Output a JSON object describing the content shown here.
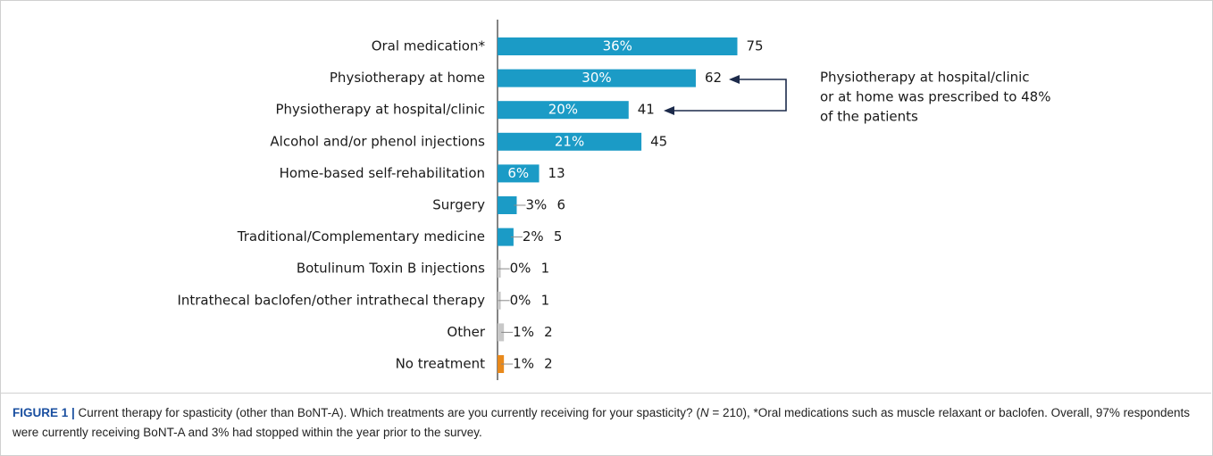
{
  "chart_data": {
    "type": "bar",
    "orientation": "horizontal",
    "categories": [
      "Oral medication*",
      "Physiotherapy at home",
      "Physiotherapy at hospital/clinic",
      "Alcohol and/or phenol injections",
      "Home-based self-rehabilitation",
      "Surgery",
      "Traditional/Complementary medicine",
      "Botulinum Toxin B injections",
      "Intrathecal baclofen/other intrathecal therapy",
      "Other",
      "No treatment"
    ],
    "values": [
      75,
      62,
      41,
      45,
      13,
      6,
      5,
      1,
      1,
      2,
      2
    ],
    "percent_labels": [
      "36%",
      "30%",
      "20%",
      "21%",
      "6%",
      "3%",
      "2%",
      "0%",
      "0%",
      "1%",
      "1%"
    ],
    "colors": [
      "#1b9bc6",
      "#1b9bc6",
      "#1b9bc6",
      "#1b9bc6",
      "#1b9bc6",
      "#1b9bc6",
      "#1b9bc6",
      "#c8c8c8",
      "#c8c8c8",
      "#c8c8c8",
      "#e8891c"
    ],
    "annotation": [
      "Physiotherapy at hospital/clinic",
      "or at  home was prescribed to 48%",
      "of the patients"
    ]
  },
  "caption": {
    "label": "FIGURE 1 |",
    "text_before": " Current therapy for spasticity (other than BoNT-A). Which treatments are you currently receiving for your spasticity? (",
    "italic": "N",
    "text_after": " = 210), *Oral medications such as muscle relaxant or baclofen. Overall, 97% respondents were currently receiving BoNT-A and 3% had stopped within the year prior to the survey."
  }
}
